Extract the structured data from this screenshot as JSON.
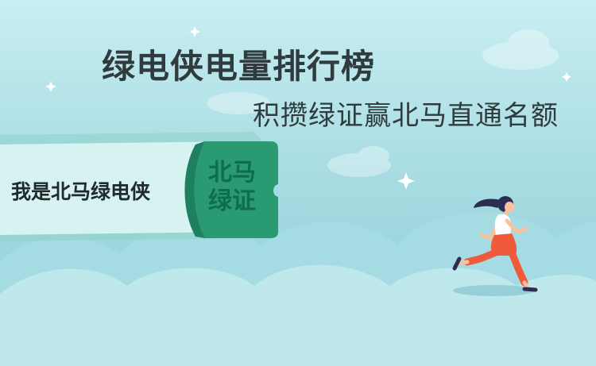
{
  "banner": {
    "title": "绿电侠电量排行榜",
    "subtitle": "积攒绿证赢北马直通名额"
  },
  "ticket": {
    "label": "我是北马绿电侠",
    "stamp_line1": "北马",
    "stamp_line2": "绿证"
  },
  "colors": {
    "sky_top": "#c8eef2",
    "ticket_green": "#2a9a72",
    "runner_orange": "#ef5a3a",
    "text_dark": "#2f3b3d"
  }
}
